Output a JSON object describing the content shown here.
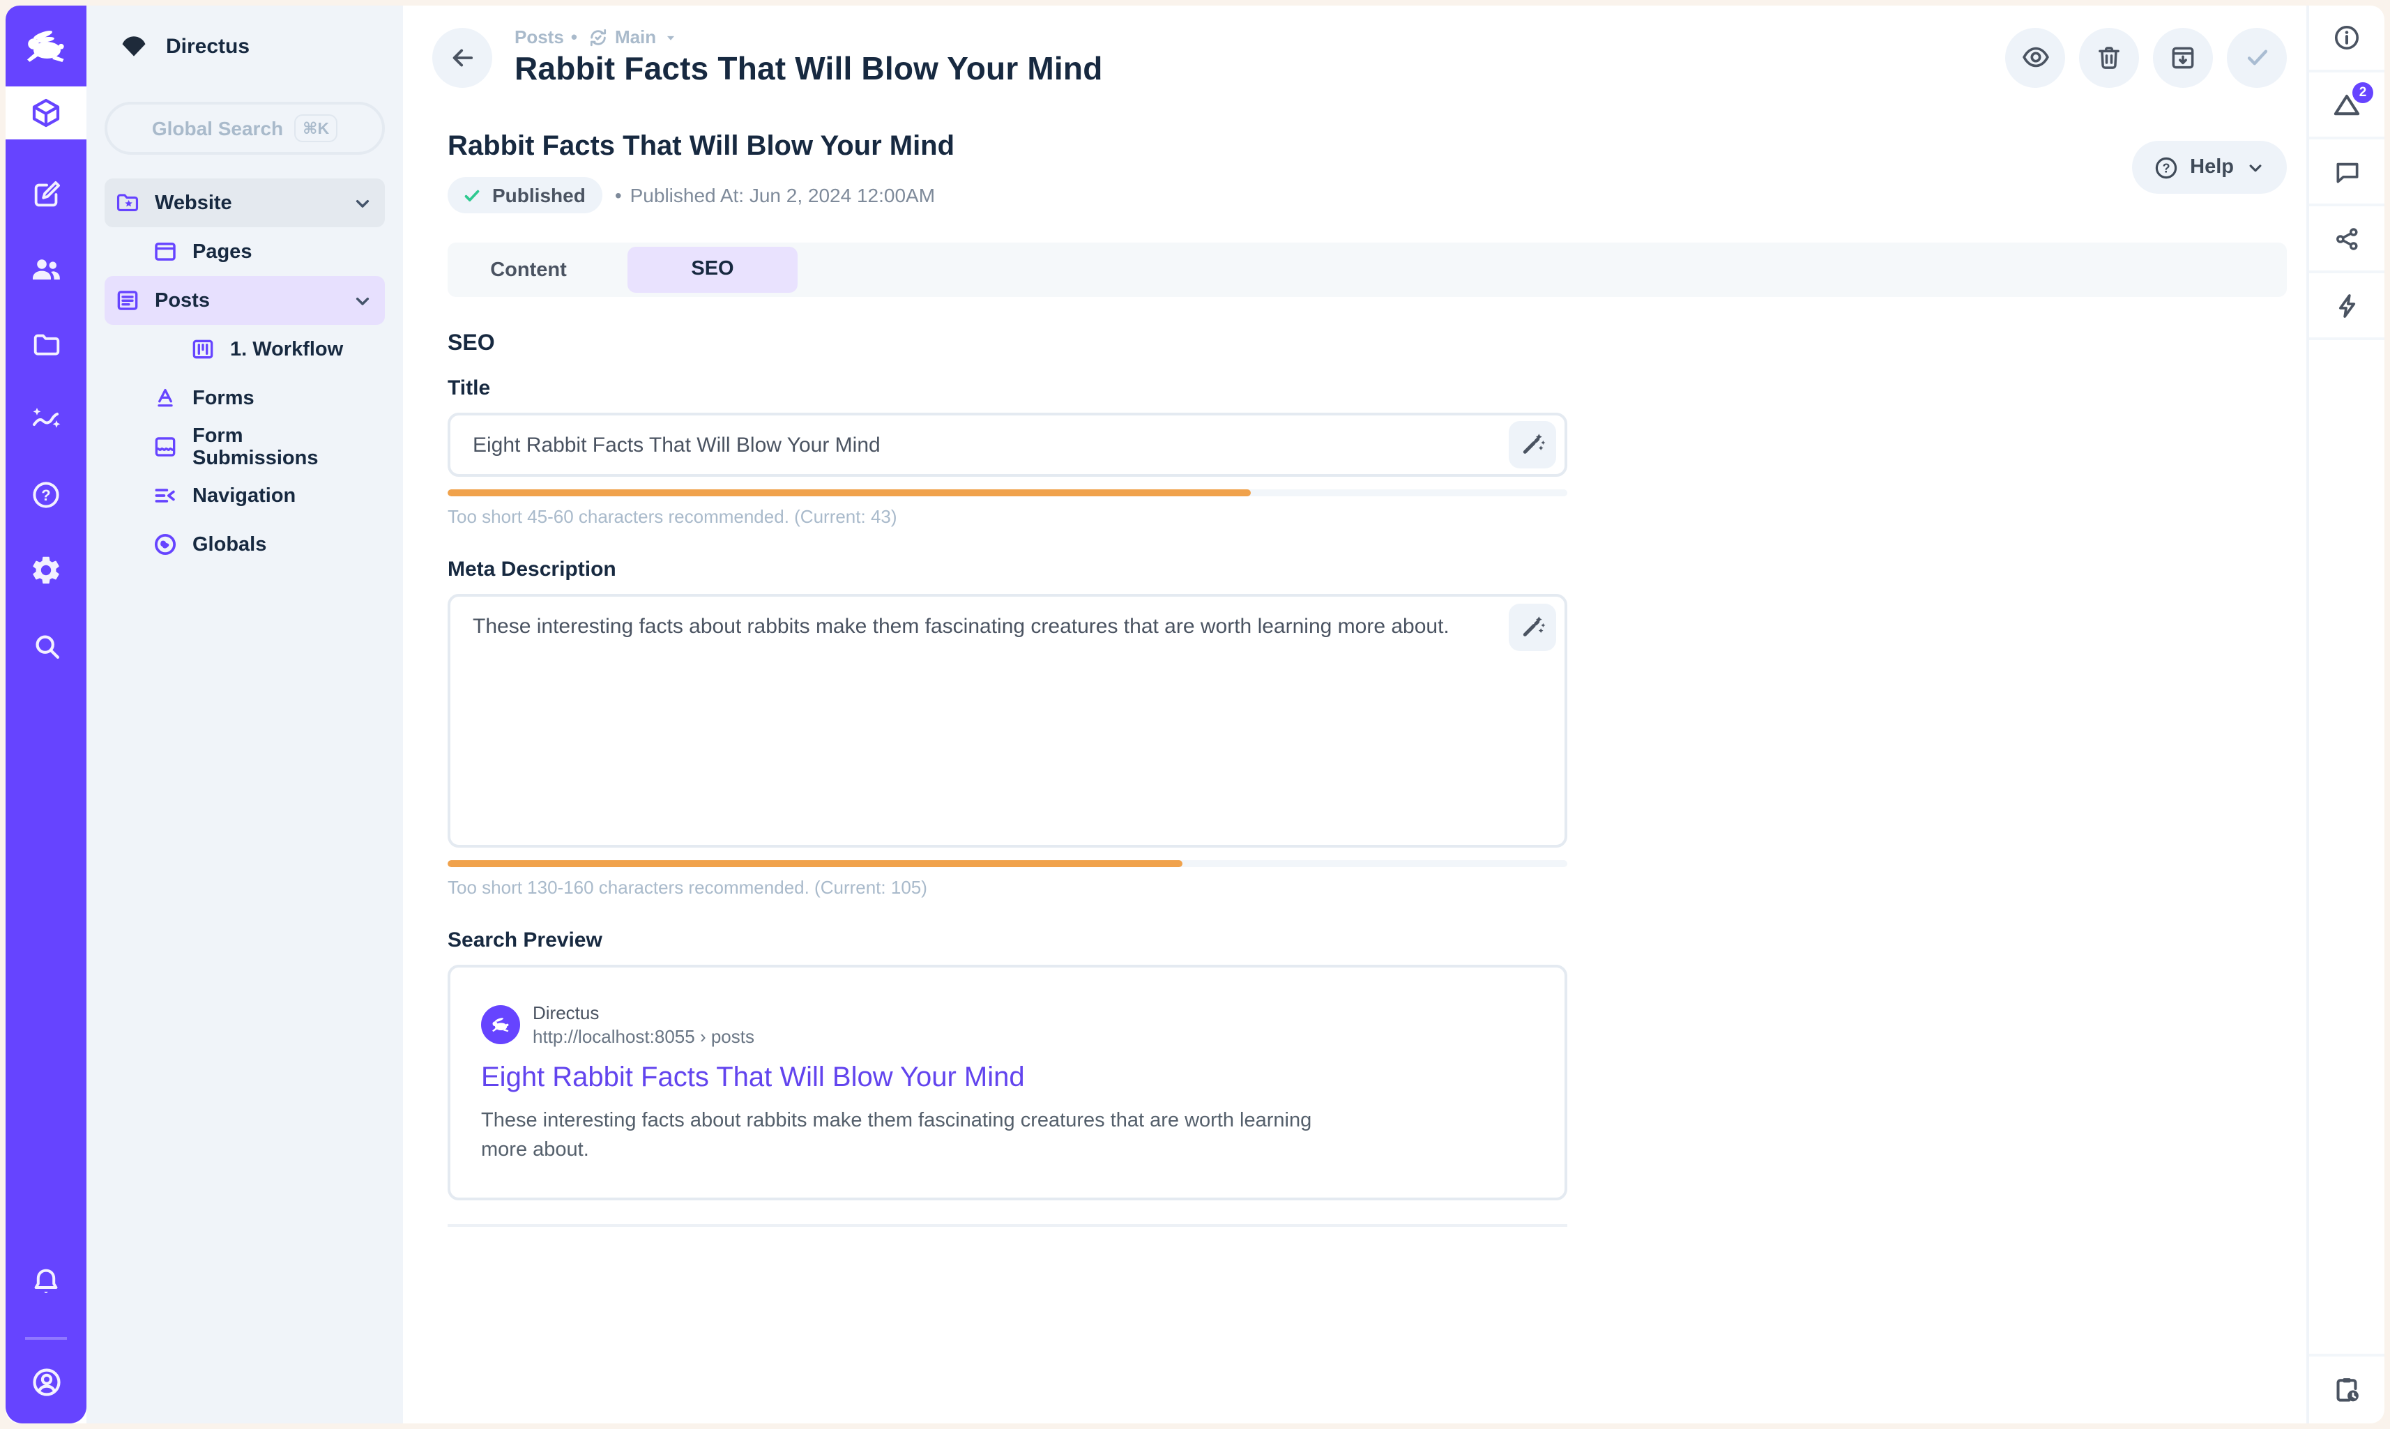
{
  "brand": {
    "app_name": "Directus"
  },
  "module_bar": {
    "icons": [
      "box-icon",
      "edit-icon",
      "people-icon",
      "folder-icon",
      "insights-icon",
      "help-circle-icon",
      "gear-icon",
      "search-icon",
      "bell-icon",
      "account-circle-icon"
    ]
  },
  "sidebar": {
    "search": {
      "placeholder": "Global Search",
      "shortcut": "⌘K"
    },
    "items": [
      {
        "label": "Website",
        "icon": "folder-star-icon"
      },
      {
        "label": "Pages",
        "icon": "pages-icon"
      },
      {
        "label": "Posts",
        "icon": "posts-icon"
      },
      {
        "label": "1. Workflow",
        "icon": "workflow-board-icon"
      },
      {
        "label": "Forms",
        "icon": "forms-icon"
      },
      {
        "label": "Form Submissions",
        "icon": "form-submissions-icon"
      },
      {
        "label": "Navigation",
        "icon": "navigation-icon"
      },
      {
        "label": "Globals",
        "icon": "globe-icon"
      }
    ]
  },
  "header": {
    "breadcrumb": {
      "collection": "Posts",
      "separator": "•",
      "version": "Main"
    },
    "title": "Rabbit Facts That Will Blow Your Mind",
    "actions": [
      "preview",
      "delete",
      "archive",
      "save"
    ]
  },
  "content": {
    "title": "Rabbit Facts That Will Blow Your Mind",
    "status": {
      "label": "Published",
      "separator": "•",
      "published_at": "Published At: Jun 2, 2024 12:00AM"
    },
    "help_label": "Help",
    "tabs": {
      "content": "Content",
      "seo": "SEO"
    },
    "seo": {
      "heading": "SEO",
      "title_field": {
        "label": "Title",
        "value": "Eight Rabbit Facts That Will Blow Your Mind",
        "progress_percent": 71.7,
        "hint": "Too short 45-60 characters recommended. (Current: 43)"
      },
      "meta_field": {
        "label": "Meta Description",
        "value": "These interesting facts about rabbits make them fascinating creatures that are worth learning more about.",
        "progress_percent": 65.6,
        "hint": "Too short 130-160 characters recommended. (Current: 105)"
      },
      "search_preview": {
        "label": "Search Preview",
        "site_name": "Directus",
        "url": "http://localhost:8055 › posts",
        "result_title": "Eight Rabbit Facts That Will Blow Your Mind",
        "result_description": "These interesting facts about rabbits make them fascinating creatures that are worth learning more about."
      }
    }
  },
  "right_sidebar": {
    "notifications_count": "2"
  },
  "colors": {
    "primary": "#6644FF",
    "warning": "#F0A24C",
    "success": "#2EC990",
    "link": "#6244EE",
    "border": "#E4EAF1"
  }
}
